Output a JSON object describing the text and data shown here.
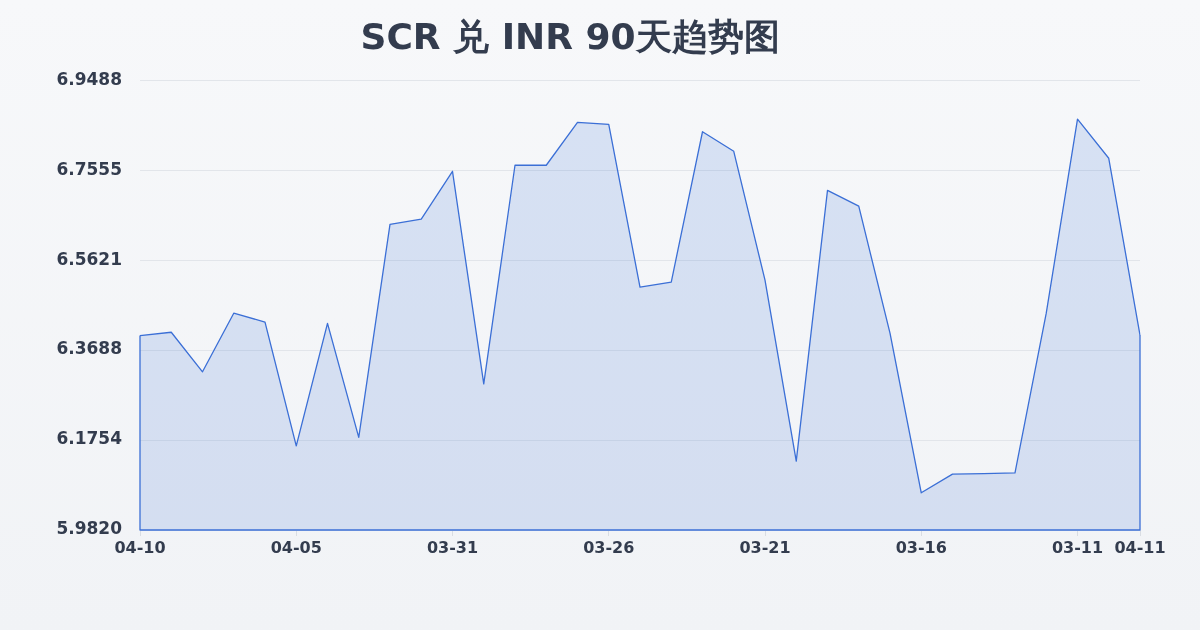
{
  "chart_data": {
    "type": "area",
    "title": "SCR 兑 INR 90天趋势图",
    "categories": [
      "04-10",
      null,
      null,
      null,
      null,
      "04-05",
      null,
      null,
      null,
      null,
      "03-31",
      null,
      null,
      null,
      null,
      "03-26",
      null,
      null,
      null,
      null,
      "03-21",
      null,
      null,
      null,
      null,
      "03-16",
      null,
      null,
      null,
      null,
      "03-11",
      null,
      "04-11"
    ],
    "series": [
      {
        "color": "#3b6fd6",
        "values": [
          6.4,
          6.407,
          6.322,
          6.448,
          6.429,
          6.163,
          6.426,
          6.181,
          6.639,
          6.65,
          6.753,
          6.296,
          6.766,
          6.766,
          6.858,
          6.854,
          6.504,
          6.515,
          6.838,
          6.796,
          6.519,
          6.13,
          6.712,
          6.678,
          6.405,
          6.062,
          6.102,
          6.103,
          6.105,
          6.448,
          6.865,
          6.781,
          6.401
        ]
      }
    ],
    "ylim": [
      5.982,
      6.9488
    ],
    "yticks": [
      {
        "value": 5.982,
        "label": "5.9820"
      },
      6.1754,
      6.3688,
      6.5621,
      6.7555,
      6.9488
    ],
    "grid": "y",
    "legend": false,
    "marker": "none",
    "line_style": "solid"
  }
}
